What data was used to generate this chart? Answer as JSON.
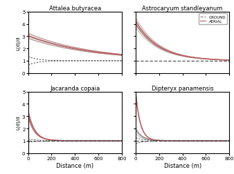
{
  "titles": [
    "Attalea butyracea",
    "Astrocaryum standleyanum",
    "Jacaranda copaia",
    "Dipteryx panamensis"
  ],
  "xlabel": "Distance (m)",
  "ylabel": "L(d)/d",
  "xlim": [
    0,
    800
  ],
  "ylim": [
    0,
    5
  ],
  "yticks": [
    0,
    1,
    2,
    3,
    4,
    5
  ],
  "xticks": [
    0,
    200,
    400,
    600,
    800
  ],
  "ground_color": "#888888",
  "aerial_color": "#c06060",
  "csr_color": "#444444",
  "legend_labels": [
    "GROUND",
    "AERIAL"
  ]
}
